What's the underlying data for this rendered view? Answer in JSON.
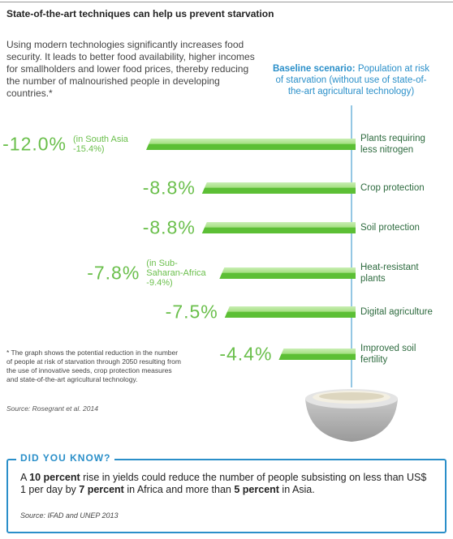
{
  "chart_data": {
    "type": "bar",
    "title": "State-of-the-art techniques can help us prevent starvation",
    "intro": "Using modern technologies significantly increases food security. It leads to better food availability, higher incomes for smallholders and lower food prices, thereby reducing the number of malnourished people in developing countries.*",
    "baseline_title": "Baseline scenario:",
    "baseline_text": "Population at risk of starvation (without use of state-of-the-art agricultural technology)",
    "categories": [
      "Plants requiring less nitrogen",
      "Crop protection",
      "Soil protection",
      "Heat-resistant plants",
      "Digital agriculture",
      "Improved soil fertility"
    ],
    "values": [
      -12.0,
      -8.8,
      -8.8,
      -7.8,
      -7.5,
      -4.4
    ],
    "value_labels": [
      "-12.0%",
      "-8.8%",
      "-8.8%",
      "-7.8%",
      "-7.5%",
      "-4.4%"
    ],
    "notes": [
      "(in South Asia -15.4%)",
      null,
      null,
      "(in Sub-Saharan-Africa -9.4%)",
      null,
      null
    ],
    "color": "#5cbf35",
    "footnote": "* The graph shows the potential reduction in the number of people at risk of starvation through 2050 resulting from the use of innovative seeds, crop protection measures and state-of-the-art agricultural technology.",
    "source": "Source: Rosegrant et al. 2014"
  },
  "did_you_know": {
    "title": "DID YOU KNOW?",
    "text": [
      {
        "text": "A ",
        "bold": false
      },
      {
        "text": "10 percent",
        "bold": true
      },
      {
        "text": " rise in yields could reduce the number of people subsisting on less than US$ 1 per day by ",
        "bold": false
      },
      {
        "text": "7 percent",
        "bold": true
      },
      {
        "text": " in Africa and more than ",
        "bold": false
      },
      {
        "text": "5 percent",
        "bold": true
      },
      {
        "text": " in Asia.",
        "bold": false
      }
    ],
    "source": "Source: IFAD and UNEP 2013"
  }
}
